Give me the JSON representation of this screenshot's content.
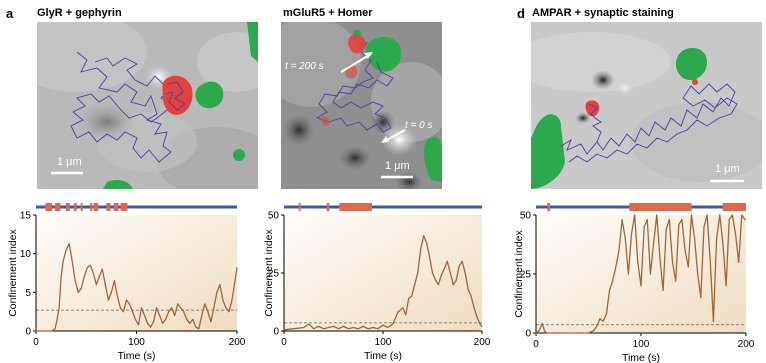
{
  "panels": [
    {
      "letter": "a",
      "title": "GlyR + gephyrin",
      "scale_label": "1 μm",
      "annotations": [],
      "chart_data": {
        "type": "line",
        "ylabel": "Confinement index",
        "xlabel": "Time (s)",
        "xlim": [
          0,
          200
        ],
        "ylim": [
          0,
          15
        ],
        "xticks": [
          0,
          100,
          200
        ],
        "yticks": [
          0,
          5,
          10,
          15
        ],
        "threshold": 2.7,
        "states": [
          [
            14,
            24
          ],
          [
            28,
            36
          ],
          [
            44,
            50
          ],
          [
            56,
            60
          ],
          [
            66,
            68
          ],
          [
            80,
            83
          ],
          [
            85,
            92
          ],
          [
            104,
            110
          ],
          [
            115,
            122
          ],
          [
            125,
            135
          ]
        ],
        "x": [
          0,
          4,
          8,
          12,
          16,
          19,
          21,
          23,
          25,
          27,
          30,
          33,
          36,
          39,
          42,
          45,
          48,
          51,
          54,
          57,
          60,
          63,
          66,
          69,
          72,
          75,
          78,
          81,
          84,
          87,
          90,
          93,
          96,
          99,
          102,
          105,
          108,
          111,
          114,
          117,
          120,
          123,
          126,
          129,
          132,
          135,
          138,
          141,
          144,
          147,
          150,
          153,
          156,
          159,
          162,
          165,
          168,
          171,
          174,
          177,
          180,
          183,
          186,
          189,
          192,
          195,
          198,
          200
        ],
        "values": [
          0,
          0,
          0,
          0,
          0,
          0.3,
          1.5,
          3,
          7,
          9,
          10.5,
          11.3,
          9,
          6.5,
          5,
          5.5,
          7,
          8.2,
          8.5,
          7.5,
          6,
          7,
          8,
          6,
          4,
          5,
          6.5,
          4.5,
          3,
          2.5,
          4,
          3.5,
          2.5,
          1.5,
          0.8,
          3,
          2,
          1,
          0.5,
          1.2,
          3,
          2,
          1,
          1.5,
          2.5,
          3,
          2,
          3.5,
          3,
          2.5,
          1.5,
          1,
          1.5,
          0.5,
          0.3,
          2,
          3.5,
          2.5,
          1.2,
          3,
          5,
          6,
          4,
          3,
          2.5,
          4,
          6.5,
          8.2
        ]
      }
    },
    {
      "letter": "",
      "title": "mGluR5 + Homer",
      "scale_label": "1 μm",
      "annotations": [
        "t = 200 s",
        "t = 0 s"
      ],
      "chart_data": {
        "type": "line",
        "ylabel": "Confinement index",
        "xlabel": "Time (s)",
        "xlim": [
          0,
          200
        ],
        "ylim": [
          0,
          50
        ],
        "xticks": [
          0,
          100,
          200
        ],
        "yticks": [
          0,
          25,
          50
        ],
        "threshold": 3.5,
        "states": [
          [
            22,
            25
          ],
          [
            64,
            68
          ],
          [
            83,
            132
          ]
        ],
        "x": [
          0,
          10,
          20,
          25,
          30,
          35,
          40,
          45,
          50,
          55,
          60,
          65,
          70,
          75,
          80,
          85,
          90,
          95,
          100,
          105,
          110,
          115,
          120,
          123,
          126,
          129,
          132,
          135,
          138,
          141,
          144,
          147,
          150,
          153,
          156,
          159,
          162,
          165,
          168,
          171,
          174,
          177,
          180,
          183,
          186,
          189,
          192,
          195,
          198,
          200
        ],
        "values": [
          0.5,
          1,
          1.5,
          3,
          1,
          2,
          1,
          1.5,
          2,
          1,
          2,
          1,
          1.5,
          1,
          2,
          1,
          1.5,
          1,
          2.5,
          1.5,
          3,
          8,
          10,
          7,
          14,
          15,
          20,
          25,
          35,
          41,
          38,
          32,
          25,
          22,
          20,
          24,
          27,
          30,
          25,
          20,
          22,
          28,
          30,
          25,
          18,
          15,
          10,
          6,
          3,
          2
        ]
      }
    },
    {
      "letter": "d",
      "title": "AMPAR + synaptic staining",
      "scale_label": "1 μm",
      "annotations": [],
      "chart_data": {
        "type": "line",
        "ylabel": "Confinement index",
        "xlabel": "Time (s)",
        "xlim": [
          0,
          200
        ],
        "ylim": [
          0,
          50
        ],
        "xticks": [
          0,
          100,
          200
        ],
        "yticks": [
          0,
          25,
          50
        ],
        "threshold": 3.5,
        "states": [
          [
            16,
            20
          ],
          [
            132,
            220
          ],
          [
            264,
            297
          ]
        ],
        "x": [
          0,
          3,
          6,
          8,
          10,
          15,
          20,
          30,
          40,
          45,
          50,
          55,
          58,
          61,
          64,
          67,
          70,
          73,
          76,
          79,
          82,
          85,
          88,
          91,
          94,
          97,
          100,
          103,
          106,
          109,
          112,
          115,
          118,
          121,
          124,
          127,
          130,
          133,
          136,
          139,
          142,
          145,
          148,
          151,
          154,
          157,
          160,
          163,
          166,
          169,
          172,
          175,
          178,
          181,
          184,
          187,
          190,
          193,
          196,
          199
        ],
        "values": [
          0,
          1,
          4,
          1,
          0,
          0,
          0,
          0,
          0,
          0,
          0,
          1,
          3,
          6,
          5,
          8,
          18,
          22,
          28,
          35,
          48,
          40,
          25,
          42,
          50,
          30,
          20,
          45,
          48,
          25,
          38,
          50,
          32,
          18,
          44,
          48,
          30,
          22,
          46,
          48,
          35,
          28,
          50,
          40,
          25,
          15,
          45,
          50,
          30,
          5,
          40,
          50,
          38,
          20,
          48,
          50,
          42,
          30,
          50,
          48
        ]
      }
    }
  ]
}
